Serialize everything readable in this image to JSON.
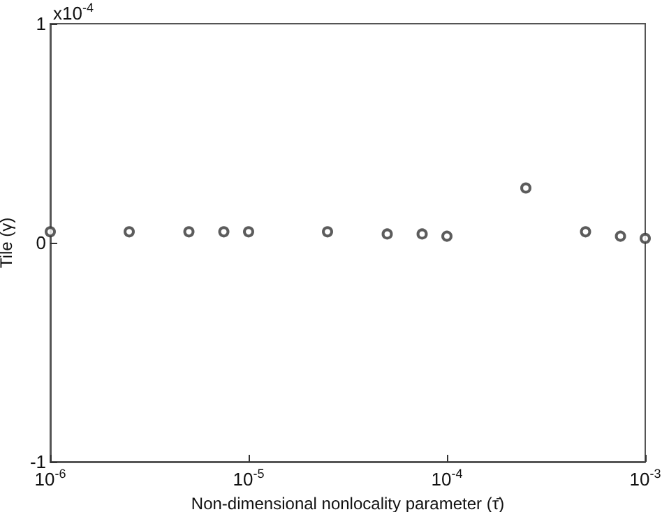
{
  "chart_data": {
    "type": "scatter",
    "xlabel": "Non-dimensional nonlocality parameter (τ̄)",
    "ylabel": "Tile (γ)",
    "annotations": [
      "x10$^{-4}$"
    ],
    "x": [
      1e-06,
      2.5e-06,
      5e-06,
      7.5e-06,
      1e-05,
      2.5e-05,
      5e-05,
      7.5e-05,
      0.0001,
      0.00025,
      0.0005,
      0.00075,
      0.001
    ],
    "series": [
      {
        "color": "#333333",
        "values": [
          0.05,
          0.05,
          0.05,
          0.05,
          0.05,
          0.05,
          0.04,
          0.04,
          0.03,
          0.25,
          0.05,
          0.03,
          0.02
        ]
      }
    ],
    "log": "x",
    "xlim": [
      1e-06,
      0.001
    ],
    "xticks": [
      {
        "value": 1e-06,
        "label": "10$^{-6}$"
      },
      {
        "value": 1e-05,
        "label": "10$^{-5}$"
      },
      {
        "value": 0.0001,
        "label": "10$^{-4}$"
      },
      {
        "value": 0.001,
        "label": "10$^{-3}$"
      }
    ],
    "ylim": [
      -1,
      1
    ],
    "yticks": [
      -1,
      0,
      1
    ],
    "marker": "circle",
    "grid": false
  }
}
